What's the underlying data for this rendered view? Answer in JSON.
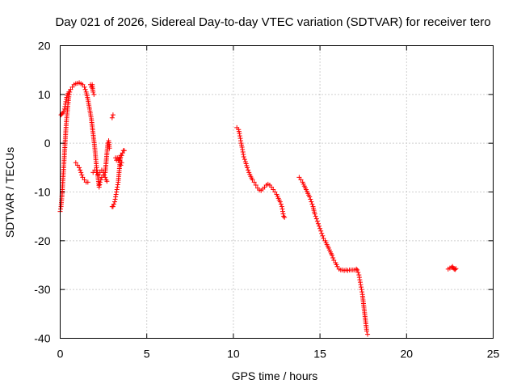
{
  "chart_data": {
    "type": "scatter",
    "title": "Day 021 of 2026, Sidereal Day-to-day VTEC variation (SDTVAR) for receiver tero",
    "xlabel": "GPS time / hours",
    "ylabel": "SDTVAR / TECUs",
    "xlim": [
      0,
      25
    ],
    "ylim": [
      -40,
      20
    ],
    "xticks": [
      "0",
      "5",
      "10",
      "15",
      "20",
      "25"
    ],
    "yticks": [
      "20",
      "10",
      "0",
      "-10",
      "-20",
      "-30",
      "-40"
    ],
    "grid": true,
    "marker": "plus",
    "color": "#ff0000",
    "series": [
      {
        "points": [
          [
            0.0,
            -14
          ],
          [
            0.05,
            -13
          ],
          [
            0.1,
            -11
          ],
          [
            0.15,
            -8
          ],
          [
            0.2,
            -5
          ],
          [
            0.25,
            -2
          ],
          [
            0.3,
            1
          ],
          [
            0.35,
            4
          ],
          [
            0.4,
            6
          ],
          [
            0.45,
            8
          ],
          [
            0.5,
            9.5
          ],
          [
            0.55,
            10.5
          ],
          [
            0.6,
            11
          ],
          [
            0.7,
            11.5
          ],
          [
            0.8,
            12
          ],
          [
            0.9,
            12.2
          ],
          [
            1.0,
            12.3
          ],
          [
            1.1,
            12.4
          ],
          [
            1.2,
            12.2
          ],
          [
            1.3,
            12
          ],
          [
            1.4,
            11.5
          ],
          [
            1.5,
            10.5
          ],
          [
            1.6,
            9
          ],
          [
            1.7,
            7
          ],
          [
            1.8,
            5
          ],
          [
            1.9,
            2
          ],
          [
            2.0,
            -1
          ],
          [
            2.05,
            -3
          ],
          [
            2.1,
            -5
          ],
          [
            2.15,
            -6
          ],
          [
            2.2,
            -7.5
          ],
          [
            2.25,
            -9
          ],
          [
            2.3,
            -8
          ],
          [
            2.4,
            -7
          ],
          [
            2.5,
            -6.5
          ],
          [
            2.6,
            -6
          ],
          [
            2.7,
            -2
          ],
          [
            2.75,
            0
          ],
          [
            2.8,
            0.5
          ],
          [
            2.85,
            -1
          ]
        ]
      },
      {
        "points": [
          [
            0.05,
            5.8
          ],
          [
            0.1,
            6
          ],
          [
            0.15,
            6.2
          ],
          [
            0.2,
            6.5
          ],
          [
            0.25,
            7
          ],
          [
            0.3,
            8
          ],
          [
            0.35,
            9
          ],
          [
            0.4,
            9.8
          ],
          [
            0.5,
            10.5
          ]
        ]
      },
      {
        "points": [
          [
            0.9,
            -4
          ],
          [
            1.0,
            -4.5
          ],
          [
            1.1,
            -5
          ],
          [
            1.2,
            -6
          ],
          [
            1.3,
            -7
          ],
          [
            1.4,
            -7.5
          ],
          [
            1.5,
            -8
          ],
          [
            1.6,
            -8
          ]
        ]
      },
      {
        "points": [
          [
            1.75,
            12
          ],
          [
            1.8,
            11.5
          ],
          [
            1.85,
            12
          ],
          [
            1.9,
            10.5
          ],
          [
            1.95,
            10
          ]
        ]
      },
      {
        "points": [
          [
            1.9,
            -6
          ],
          [
            2.0,
            -5.5
          ],
          [
            2.1,
            -6
          ],
          [
            2.2,
            -6.5
          ],
          [
            2.3,
            -6
          ],
          [
            2.4,
            -5.5
          ],
          [
            2.5,
            -6
          ],
          [
            2.6,
            -7
          ],
          [
            2.65,
            -7.5
          ],
          [
            2.7,
            -7.8
          ]
        ]
      },
      {
        "points": [
          [
            3.0,
            -13
          ],
          [
            3.05,
            -13
          ],
          [
            3.1,
            -12.5
          ],
          [
            3.15,
            -12
          ],
          [
            3.2,
            -11
          ],
          [
            3.25,
            -10
          ],
          [
            3.3,
            -9
          ],
          [
            3.35,
            -8
          ],
          [
            3.4,
            -6
          ],
          [
            3.45,
            -4
          ],
          [
            3.5,
            -2.5
          ],
          [
            3.55,
            -2.5
          ],
          [
            3.6,
            -2
          ],
          [
            3.65,
            -1.5
          ],
          [
            3.7,
            -1.5
          ]
        ]
      },
      {
        "points": [
          [
            3.2,
            -3
          ],
          [
            3.25,
            -3.5
          ],
          [
            3.3,
            -3
          ],
          [
            3.35,
            -3.5
          ],
          [
            3.4,
            -3
          ],
          [
            3.45,
            -4
          ],
          [
            3.5,
            -4.5
          ],
          [
            3.55,
            -4
          ]
        ]
      },
      {
        "points": [
          [
            3.0,
            5.2
          ],
          [
            3.05,
            5.8
          ]
        ]
      },
      {
        "points": [
          [
            10.2,
            3.2
          ],
          [
            10.3,
            2.8
          ],
          [
            10.35,
            2
          ],
          [
            10.4,
            1
          ],
          [
            10.45,
            0
          ],
          [
            10.5,
            -0.8
          ],
          [
            10.55,
            -1.8
          ],
          [
            10.6,
            -2.8
          ],
          [
            10.7,
            -3.8
          ],
          [
            10.8,
            -5
          ],
          [
            10.9,
            -6
          ],
          [
            11.0,
            -6.8
          ],
          [
            11.1,
            -7.5
          ],
          [
            11.2,
            -8
          ],
          [
            11.3,
            -8.6
          ],
          [
            11.4,
            -9.2
          ],
          [
            11.5,
            -9.6
          ],
          [
            11.6,
            -9.7
          ],
          [
            11.7,
            -9.4
          ],
          [
            11.8,
            -9
          ],
          [
            11.9,
            -8.6
          ],
          [
            12.0,
            -8.4
          ],
          [
            12.1,
            -8.6
          ],
          [
            12.2,
            -9
          ],
          [
            12.3,
            -9.5
          ],
          [
            12.4,
            -10
          ],
          [
            12.5,
            -10.5
          ],
          [
            12.6,
            -11.3
          ],
          [
            12.7,
            -12
          ],
          [
            12.8,
            -13
          ],
          [
            12.85,
            -14
          ],
          [
            12.9,
            -15
          ],
          [
            12.95,
            -15.2
          ]
        ]
      },
      {
        "points": [
          [
            13.8,
            -7
          ],
          [
            13.9,
            -7.5
          ],
          [
            14.0,
            -8
          ],
          [
            14.1,
            -8.8
          ],
          [
            14.2,
            -9.5
          ],
          [
            14.3,
            -10.3
          ],
          [
            14.4,
            -11
          ],
          [
            14.5,
            -12
          ],
          [
            14.6,
            -13
          ],
          [
            14.7,
            -14.5
          ],
          [
            14.8,
            -15.5
          ],
          [
            14.9,
            -16.5
          ],
          [
            15.0,
            -17.5
          ],
          [
            15.1,
            -18.5
          ],
          [
            15.2,
            -19.5
          ],
          [
            15.3,
            -20
          ],
          [
            15.4,
            -20.8
          ],
          [
            15.5,
            -21.5
          ],
          [
            15.6,
            -22.3
          ],
          [
            15.7,
            -23
          ],
          [
            15.8,
            -24
          ],
          [
            15.9,
            -24.5
          ],
          [
            16.0,
            -25.3
          ],
          [
            16.1,
            -25.8
          ],
          [
            16.2,
            -26
          ],
          [
            16.3,
            -26
          ],
          [
            16.4,
            -26.1
          ],
          [
            16.5,
            -26
          ],
          [
            16.6,
            -26.1
          ],
          [
            16.7,
            -26
          ],
          [
            16.8,
            -26
          ],
          [
            16.9,
            -26
          ],
          [
            17.0,
            -26
          ],
          [
            17.1,
            -25.8
          ],
          [
            17.15,
            -26
          ],
          [
            17.2,
            -26.5
          ],
          [
            17.25,
            -27
          ],
          [
            17.3,
            -28
          ],
          [
            17.35,
            -29
          ],
          [
            17.4,
            -30
          ],
          [
            17.45,
            -31
          ],
          [
            17.5,
            -32.5
          ],
          [
            17.55,
            -34
          ],
          [
            17.6,
            -35.5
          ],
          [
            17.65,
            -37
          ],
          [
            17.7,
            -38.5
          ],
          [
            17.75,
            -39.2
          ]
        ]
      },
      {
        "points": [
          [
            22.4,
            -25.8
          ],
          [
            22.5,
            -25.6
          ],
          [
            22.6,
            -25.5
          ],
          [
            22.65,
            -25.3
          ],
          [
            22.7,
            -25.6
          ],
          [
            22.75,
            -25.8
          ],
          [
            22.8,
            -25.9
          ],
          [
            22.85,
            -25.7
          ]
        ]
      }
    ]
  }
}
